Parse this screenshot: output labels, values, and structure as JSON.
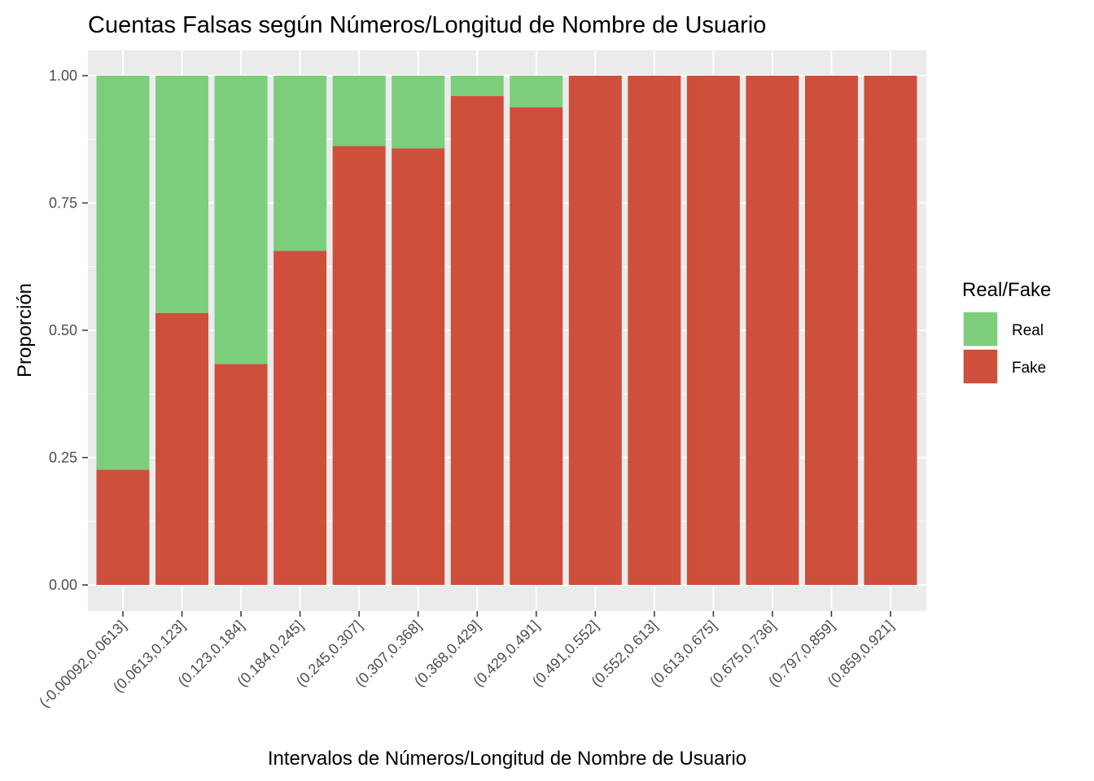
{
  "chart_data": {
    "type": "bar",
    "stacked": true,
    "proportional": true,
    "title": "Cuentas Falsas según Números/Longitud de Nombre de Usuario",
    "xlabel": "Intervalos de Números/Longitud de Nombre de Usuario",
    "ylabel": "Proporción",
    "ylim": [
      0,
      1
    ],
    "yticks": [
      "0.00",
      "0.25",
      "0.50",
      "0.75",
      "1.00"
    ],
    "grid": true,
    "legend_position": "right",
    "legend_title": "Real/Fake",
    "categories": [
      "(-0.00092,0.0613]",
      "(0.0613,0.123]",
      "(0.123,0.184]",
      "(0.184,0.245]",
      "(0.245,0.307]",
      "(0.307,0.368]",
      "(0.368,0.429]",
      "(0.429,0.491]",
      "(0.491,0.552]",
      "(0.552,0.613]",
      "(0.613,0.675]",
      "(0.675,0.736]",
      "(0.797,0.859]",
      "(0.859,0.921]"
    ],
    "series": [
      {
        "name": "Fake",
        "color": "#cd4f3c",
        "values": [
          0.226,
          0.534,
          0.434,
          0.656,
          0.862,
          0.857,
          0.96,
          0.938,
          1,
          1,
          1,
          1,
          1,
          1
        ]
      },
      {
        "name": "Real",
        "color": "#7ccd7c",
        "values": [
          0.774,
          0.466,
          0.566,
          0.344,
          0.138,
          0.143,
          0.04,
          0.062,
          0,
          0,
          0,
          0,
          0,
          0
        ]
      }
    ],
    "legend_order": [
      "Real",
      "Fake"
    ]
  }
}
